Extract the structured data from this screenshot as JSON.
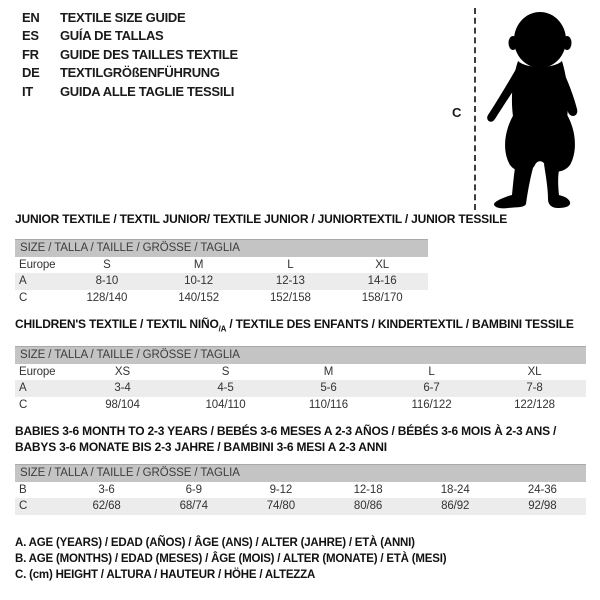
{
  "languages": [
    {
      "code": "EN",
      "label": "TEXTILE SIZE GUIDE"
    },
    {
      "code": "ES",
      "label": "GUÍA DE TALLAS"
    },
    {
      "code": "FR",
      "label": "GUIDE DES TAILLES TEXTILE"
    },
    {
      "code": "DE",
      "label": "TEXTILGRÖßENFÜHRUNG"
    },
    {
      "code": "IT",
      "label": "GUIDA ALLE TAGLIE TESSILI"
    }
  ],
  "figure": {
    "measurement_label": "C",
    "image": "toddler-silhouette"
  },
  "sections": [
    {
      "title": "JUNIOR TEXTILE / TEXTIL JUNIOR/ TEXTILE JUNIOR / JUNIORTEXTIL / JUNIOR TESSILE",
      "table_header": "SIZE / TALLA / TAILLE / GRÖSSE / TAGLIA",
      "rows": [
        [
          "Europe",
          "S",
          "M",
          "L",
          "XL"
        ],
        [
          "A",
          "8-10",
          "10-12",
          "12-13",
          "14-16"
        ],
        [
          "C",
          "128/140",
          "140/152",
          "152/158",
          "158/170"
        ]
      ]
    },
    {
      "title_pre": "CHILDREN'S TEXTILE / TEXTIL NIÑO",
      "title_sub": "/A",
      "title_post": " / TEXTILE DES ENFANTS / KINDERTEXTIL / BAMBINI TESSILE",
      "table_header": "SIZE / TALLA / TAILLE / GRÖSSE / TAGLIA",
      "rows": [
        [
          "Europe",
          "XS",
          "S",
          "M",
          "L",
          "XL"
        ],
        [
          "A",
          "3-4",
          "4-5",
          "5-6",
          "6-7",
          "7-8"
        ],
        [
          "C",
          "98/104",
          "104/110",
          "110/116",
          "116/122",
          "122/128"
        ]
      ]
    },
    {
      "title_line1": "BABIES 3-6 MONTH TO 2-3 YEARS / BEBÉS 3-6 MESES A 2-3 AÑOS / BÉBÉS 3-6 MOIS À 2-3 ANS /",
      "title_line2": "BABYS 3-6 MONATE BIS 2-3 JAHRE / BAMBINI 3-6 MESI A 2-3 ANNI",
      "table_header": "SIZE / TALLA / TAILLE / GRÖSSE / TAGLIA",
      "rows": [
        [
          "B",
          "3-6",
          "6-9",
          "9-12",
          "12-18",
          "18-24",
          "24-36"
        ],
        [
          "C",
          "62/68",
          "68/74",
          "74/80",
          "80/86",
          "86/92",
          "92/98"
        ]
      ]
    }
  ],
  "notes": [
    "A. AGE (YEARS) / EDAD (AÑOS) / ÂGE (ANS) / ALTER (JAHRE) / ETÀ (ANNI)",
    "B. AGE (MONTHS) / EDAD (MESES) / ÂGE (MOIS) / ALTER (MONATE) / ETÀ (MESI)",
    "C. (cm) HEIGHT / ALTURA / HAUTEUR / HÖHE / ALTEZZA"
  ],
  "colors": {
    "table_header_bg": "#c4c4c4",
    "row_shaded_bg": "#ececec",
    "silhouette": "#000000",
    "dashed_line": "#3c3c3c"
  }
}
